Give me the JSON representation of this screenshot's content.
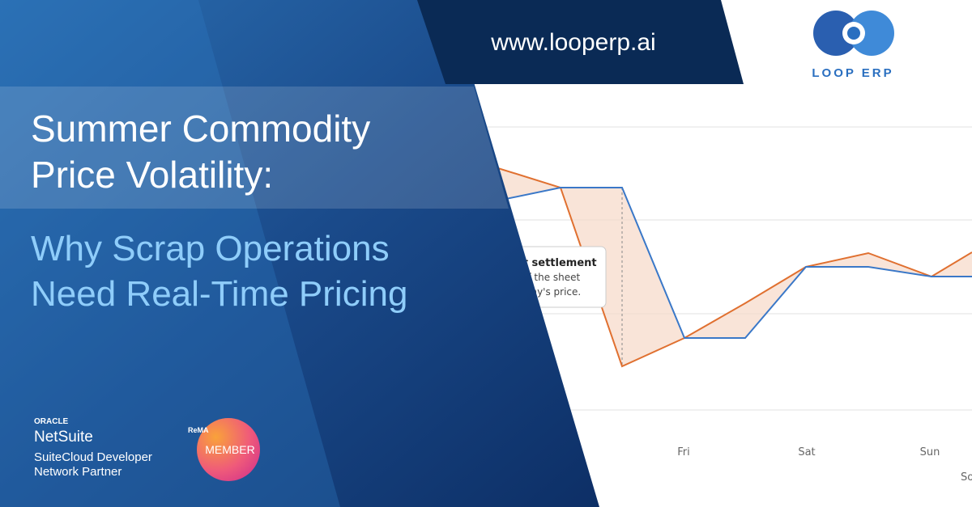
{
  "header": {
    "url": "www.looperp.ai",
    "brand": "LOOP ERP"
  },
  "headline": {
    "title": [
      "Summer Commodity",
      "Price Volatility:"
    ],
    "subtitle": [
      "Why Scrap Operations",
      "Need Real-Time Pricing"
    ]
  },
  "chart": {
    "callout": [
      "at settlement",
      "off the sheet",
      "erday's price."
    ],
    "categories": [
      "Fri",
      "Sat",
      "Sun"
    ],
    "axis_label": "So"
  },
  "badges": {
    "oracle": "ORACLE",
    "netsuite": "NetSuite",
    "partner": [
      "SuiteCloud Developer",
      "Network Partner"
    ],
    "rema": "ReMA",
    "member": "MEMBER"
  }
}
